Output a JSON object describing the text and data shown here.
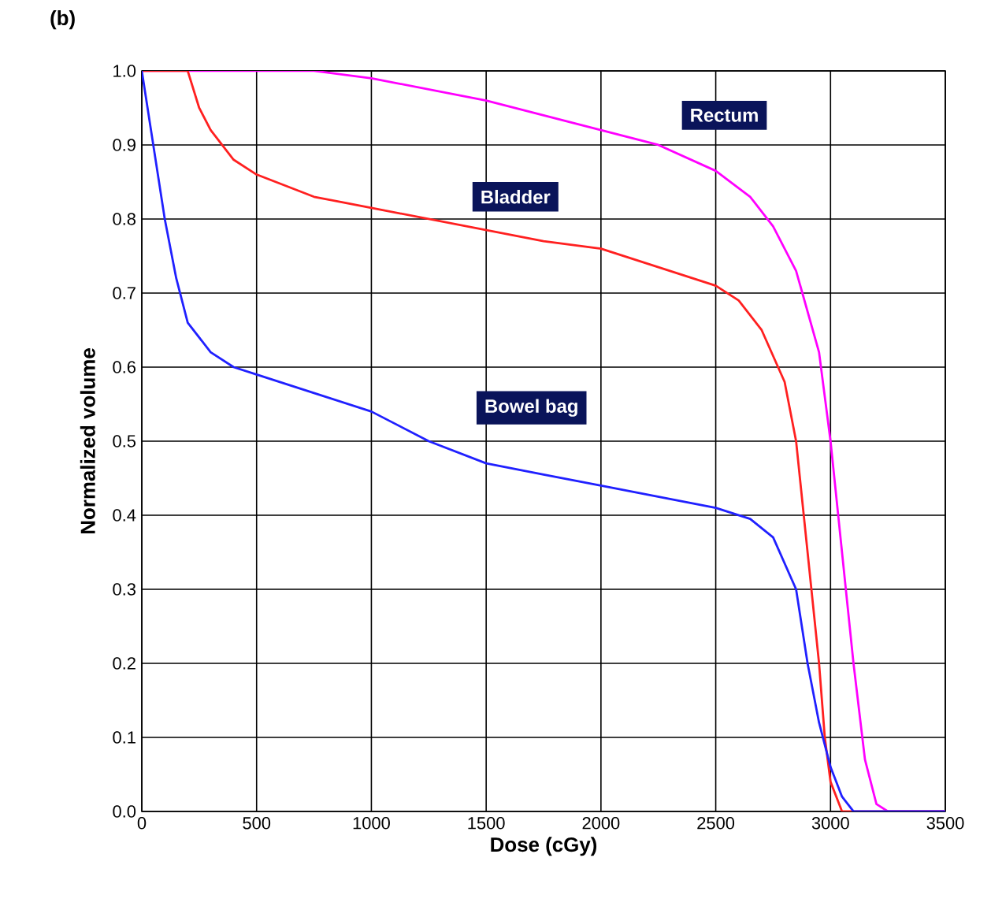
{
  "chart_data": {
    "type": "line",
    "xlabel": "Dose (cGy)",
    "ylabel": "Normalized volume",
    "annotations": [
      "(b)"
    ],
    "xlim": [
      0,
      3500
    ],
    "ylim": [
      0,
      1.0
    ],
    "xticks": [
      0,
      500,
      1000,
      1500,
      2000,
      2500,
      3000,
      3500
    ],
    "yticks": [
      {
        "value": 0,
        "label": "0.0"
      },
      {
        "value": 0.1,
        "label": "0.1"
      },
      {
        "value": 0.2,
        "label": "0.2"
      },
      {
        "value": 0.3,
        "label": "0.3"
      },
      {
        "value": 0.4,
        "label": "0.4"
      },
      {
        "value": 0.5,
        "label": "0.5"
      },
      {
        "value": 0.6,
        "label": "0.6"
      },
      {
        "value": 0.7,
        "label": "0.7"
      },
      {
        "value": 0.8,
        "label": "0.8"
      },
      {
        "value": 0.9,
        "label": "0.9"
      },
      {
        "value": 1.0,
        "label": "1.0"
      }
    ],
    "grid": true,
    "legend": false,
    "marker": "none",
    "line_style": "solid",
    "series": [
      {
        "name": "Rectum",
        "color": "#ff00ff",
        "x": [
          0,
          750,
          1000,
          1250,
          1500,
          1750,
          2000,
          2250,
          2500,
          2650,
          2750,
          2850,
          2950,
          3000,
          3050,
          3100,
          3150,
          3200,
          3250,
          3500
        ],
        "values": [
          1.0,
          1.0,
          0.99,
          0.975,
          0.96,
          0.94,
          0.92,
          0.9,
          0.865,
          0.83,
          0.79,
          0.73,
          0.62,
          0.5,
          0.35,
          0.2,
          0.07,
          0.01,
          0,
          0
        ]
      },
      {
        "name": "Bladder",
        "color": "#ff2020",
        "x": [
          0,
          200,
          250,
          300,
          400,
          500,
          750,
          1000,
          1250,
          1500,
          1750,
          2000,
          2250,
          2500,
          2600,
          2700,
          2800,
          2850,
          2900,
          2950,
          2975,
          3000,
          3050,
          3500
        ],
        "values": [
          1.0,
          1.0,
          0.95,
          0.92,
          0.88,
          0.86,
          0.83,
          0.815,
          0.8,
          0.785,
          0.77,
          0.76,
          0.735,
          0.71,
          0.69,
          0.65,
          0.58,
          0.5,
          0.35,
          0.2,
          0.1,
          0.04,
          0,
          0
        ]
      },
      {
        "name": "Bowel bag",
        "color": "#2020ff",
        "x": [
          0,
          50,
          100,
          150,
          200,
          300,
          400,
          500,
          750,
          1000,
          1250,
          1500,
          1750,
          2000,
          2250,
          2500,
          2650,
          2750,
          2850,
          2900,
          2950,
          3000,
          3050,
          3100,
          3500
        ],
        "values": [
          1.0,
          0.9,
          0.8,
          0.72,
          0.66,
          0.62,
          0.6,
          0.59,
          0.565,
          0.54,
          0.5,
          0.47,
          0.455,
          0.44,
          0.425,
          0.41,
          0.395,
          0.37,
          0.3,
          0.2,
          0.12,
          0.06,
          0.02,
          0,
          0
        ]
      }
    ]
  }
}
